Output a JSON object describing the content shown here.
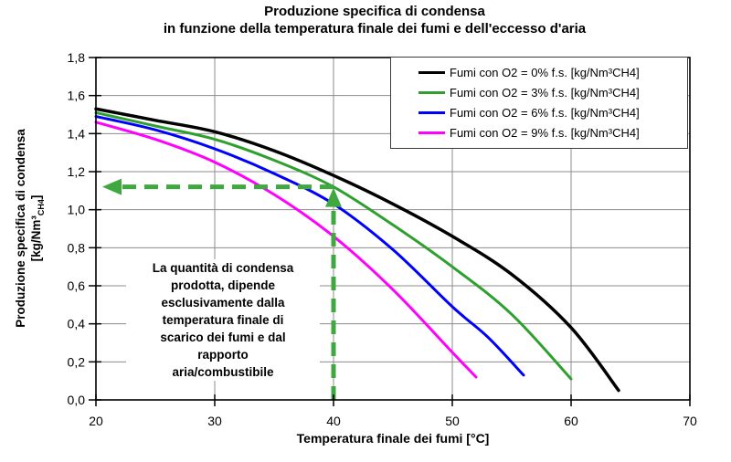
{
  "title": {
    "line1": "Produzione specifica di condensa",
    "line2": "in funzione della temperatura finale dei fumi e dell'eccesso d'aria"
  },
  "x_axis": {
    "label": "Temperatura finale dei fumi [°C]"
  },
  "y_axis": {
    "label_line1": "Produzione specifica di condensa",
    "unit_pre": "[kg/Nm³",
    "unit_sub": "CH4",
    "unit_post": "]"
  },
  "annotation": {
    "text": "La quantità di condensa\nprodotta, dipende\nesclusivamente dalla\ntemperatura finale di\nscarico dei fumi e dal\nrapporto\naria/combustibile"
  },
  "chart_data": {
    "type": "line",
    "title": "Produzione specifica di condensa in funzione della temperatura finale dei fumi e dell'eccesso d'aria",
    "xlabel": "Temperatura finale dei fumi [°C]",
    "ylabel": "Produzione specifica di condensa [kg/Nm³CH4]",
    "xlim": [
      20,
      70
    ],
    "ylim": [
      0,
      1.8
    ],
    "x_ticks": [
      20,
      30,
      40,
      50,
      60,
      70
    ],
    "x_tick_labels": [
      "20",
      "30",
      "40",
      "50",
      "60",
      "70"
    ],
    "y_ticks": [
      0,
      0.2,
      0.4,
      0.6,
      0.8,
      1.0,
      1.2,
      1.4,
      1.6,
      1.8
    ],
    "y_tick_labels": [
      "0,0",
      "0,2",
      "0,4",
      "0,6",
      "0,8",
      "1,0",
      "1,2",
      "1,4",
      "1,6",
      "1,8"
    ],
    "grid": true,
    "grid_color": "#8C8C8C",
    "axis_color": "#000000",
    "legend_position": "top-right",
    "series": [
      {
        "name": "Fumi con O2 = 0% f.s. [kg/Nm³CH4]",
        "color": "#000000",
        "width": 3.5,
        "points": [
          [
            20,
            1.53
          ],
          [
            25,
            1.47
          ],
          [
            30,
            1.41
          ],
          [
            35,
            1.31
          ],
          [
            40,
            1.18
          ],
          [
            45,
            1.03
          ],
          [
            50,
            0.86
          ],
          [
            55,
            0.66
          ],
          [
            60,
            0.38
          ],
          [
            64,
            0.05
          ]
        ]
      },
      {
        "name": "Fumi con O2 = 3% f.s. [kg/Nm³CH4]",
        "color": "#2FA02F",
        "width": 3,
        "points": [
          [
            20,
            1.51
          ],
          [
            25,
            1.44
          ],
          [
            30,
            1.37
          ],
          [
            35,
            1.26
          ],
          [
            40,
            1.12
          ],
          [
            45,
            0.92
          ],
          [
            50,
            0.7
          ],
          [
            55,
            0.45
          ],
          [
            60,
            0.11
          ]
        ]
      },
      {
        "name": "Fumi con O2 = 6% f.s. [kg/Nm³CH4]",
        "color": "#0000FF",
        "width": 3,
        "points": [
          [
            20,
            1.49
          ],
          [
            25,
            1.42
          ],
          [
            30,
            1.32
          ],
          [
            35,
            1.19
          ],
          [
            40,
            1.03
          ],
          [
            45,
            0.79
          ],
          [
            50,
            0.49
          ],
          [
            53,
            0.33
          ],
          [
            56,
            0.13
          ]
        ]
      },
      {
        "name": "Fumi con O2 = 9% f.s. [kg/Nm³CH4]",
        "color": "#FF00FF",
        "width": 3,
        "points": [
          [
            20,
            1.46
          ],
          [
            25,
            1.37
          ],
          [
            30,
            1.25
          ],
          [
            35,
            1.08
          ],
          [
            40,
            0.86
          ],
          [
            45,
            0.58
          ],
          [
            50,
            0.25
          ],
          [
            52,
            0.12
          ]
        ]
      }
    ],
    "guide_arrow": {
      "color": "#3FA83F",
      "x_value": 40,
      "y_value": 1.12
    }
  }
}
